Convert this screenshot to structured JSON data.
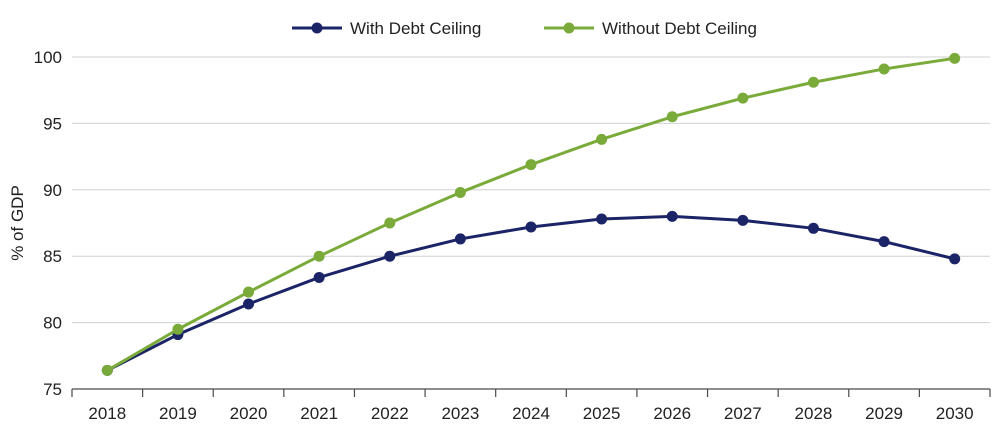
{
  "chart_data": {
    "type": "line",
    "title": "",
    "xlabel": "",
    "ylabel": "% of GDP",
    "categories": [
      "2018",
      "2019",
      "2020",
      "2021",
      "2022",
      "2023",
      "2024",
      "2025",
      "2026",
      "2027",
      "2028",
      "2029",
      "2030"
    ],
    "ylim": [
      75,
      100
    ],
    "yticks": [
      75,
      80,
      85,
      90,
      95,
      100
    ],
    "grid": "horizontal",
    "legend_position": "top-center",
    "series": [
      {
        "name": "With Debt Ceiling",
        "color": "#1b2466",
        "values": [
          76.4,
          79.1,
          81.4,
          83.4,
          85.0,
          86.3,
          87.2,
          87.8,
          88.0,
          87.7,
          87.1,
          86.1,
          84.8
        ]
      },
      {
        "name": "Without Debt Ceiling",
        "color": "#7aab3a",
        "values": [
          76.4,
          79.5,
          82.3,
          85.0,
          87.5,
          89.8,
          91.9,
          93.8,
          95.5,
          96.9,
          98.1,
          99.1,
          99.9
        ]
      }
    ]
  }
}
